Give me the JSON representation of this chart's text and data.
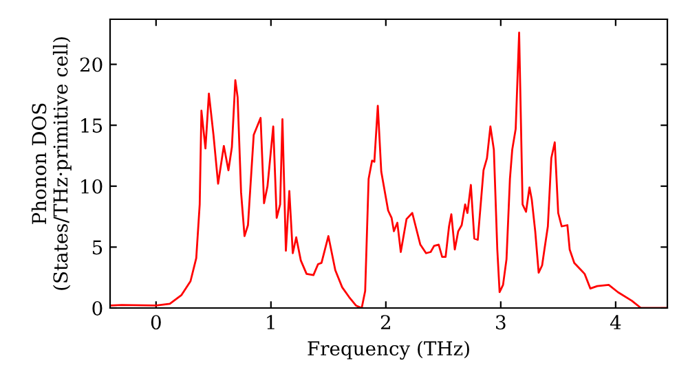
{
  "chart_data": {
    "type": "line",
    "xlabel": "Frequency (THz)",
    "ylabel": "Phonon DOS\n(States/THz·primitive cell)",
    "xlim": [
      -0.4,
      4.45
    ],
    "ylim": [
      0,
      23.7
    ],
    "xticks": [
      0,
      1,
      2,
      3,
      4
    ],
    "yticks": [
      0,
      5,
      10,
      15,
      20
    ],
    "grid": false,
    "legend": false,
    "marker": "none",
    "line_style": "solid",
    "series": [
      {
        "color": "#ff0000",
        "x": [
          -0.4,
          -0.3,
          0.0,
          0.12,
          0.22,
          0.3,
          0.35,
          0.38,
          0.395,
          0.43,
          0.46,
          0.5,
          0.54,
          0.59,
          0.63,
          0.66,
          0.69,
          0.71,
          0.74,
          0.77,
          0.8,
          0.85,
          0.91,
          0.94,
          0.97,
          1.02,
          1.05,
          1.08,
          1.1,
          1.13,
          1.16,
          1.19,
          1.22,
          1.26,
          1.31,
          1.37,
          1.41,
          1.44,
          1.5,
          1.56,
          1.62,
          1.68,
          1.74,
          1.79,
          1.82,
          1.85,
          1.88,
          1.9,
          1.93,
          1.96,
          2.02,
          2.05,
          2.07,
          2.1,
          2.13,
          2.18,
          2.23,
          2.3,
          2.35,
          2.39,
          2.42,
          2.46,
          2.49,
          2.52,
          2.55,
          2.57,
          2.6,
          2.63,
          2.66,
          2.69,
          2.71,
          2.74,
          2.77,
          2.8,
          2.85,
          2.88,
          2.91,
          2.94,
          2.97,
          2.99,
          3.02,
          3.05,
          3.08,
          3.1,
          3.13,
          3.16,
          3.19,
          3.22,
          3.25,
          3.27,
          3.3,
          3.33,
          3.36,
          3.38,
          3.41,
          3.44,
          3.47,
          3.5,
          3.53,
          3.58,
          3.6,
          3.64,
          3.7,
          3.73,
          3.78,
          3.84,
          3.94,
          4.02,
          4.14,
          4.22,
          4.45
        ],
        "values": [
          0.2,
          0.25,
          0.2,
          0.35,
          1.05,
          2.2,
          4.1,
          8.5,
          16.2,
          13.1,
          17.6,
          14.2,
          10.2,
          13.3,
          11.3,
          13.2,
          18.7,
          17.3,
          9.5,
          5.9,
          6.8,
          14.2,
          15.6,
          8.6,
          10.0,
          14.9,
          7.4,
          8.5,
          15.5,
          4.7,
          9.6,
          4.5,
          5.8,
          3.9,
          2.8,
          2.7,
          3.6,
          3.7,
          5.9,
          3.1,
          1.7,
          0.9,
          0.2,
          0.0,
          1.4,
          10.6,
          12.1,
          12.0,
          16.6,
          11.2,
          8.0,
          7.4,
          6.3,
          7.0,
          4.6,
          7.3,
          7.8,
          5.2,
          4.5,
          4.6,
          5.1,
          5.2,
          4.2,
          4.2,
          6.7,
          7.7,
          4.8,
          6.3,
          6.8,
          8.5,
          7.8,
          10.1,
          5.7,
          5.6,
          11.3,
          12.3,
          14.9,
          13.0,
          4.8,
          1.3,
          1.9,
          4.0,
          10.6,
          13.0,
          14.7,
          22.6,
          8.5,
          7.9,
          9.9,
          8.9,
          6.3,
          2.9,
          3.5,
          4.8,
          6.7,
          12.3,
          13.6,
          7.8,
          6.7,
          6.8,
          4.8,
          3.7,
          3.1,
          2.8,
          1.6,
          1.8,
          1.9,
          1.3,
          0.6,
          0.0,
          0.0
        ]
      }
    ]
  }
}
